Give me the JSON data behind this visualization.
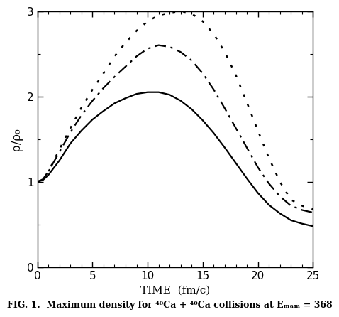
{
  "title": "",
  "xlabel": "TIME  (fm/c)",
  "ylabel": "ρ/ρ₀",
  "xlim": [
    0,
    25
  ],
  "ylim": [
    0,
    3
  ],
  "xticks": [
    0,
    5,
    10,
    15,
    20,
    25
  ],
  "yticks": [
    0,
    1,
    2,
    3
  ],
  "background_color": "#ffffff",
  "curves": {
    "solid": {
      "t": [
        0,
        0.5,
        1,
        2,
        3,
        4,
        5,
        6,
        7,
        8,
        9,
        10,
        11,
        12,
        13,
        14,
        15,
        16,
        17,
        18,
        19,
        20,
        21,
        22,
        23,
        24,
        25
      ],
      "rho": [
        1.0,
        1.02,
        1.08,
        1.25,
        1.45,
        1.6,
        1.73,
        1.83,
        1.92,
        1.98,
        2.03,
        2.05,
        2.05,
        2.02,
        1.95,
        1.85,
        1.72,
        1.57,
        1.4,
        1.22,
        1.04,
        0.87,
        0.73,
        0.63,
        0.55,
        0.51,
        0.48
      ]
    },
    "dashdot": {
      "t": [
        0,
        0.5,
        1,
        2,
        3,
        4,
        5,
        6,
        7,
        8,
        9,
        10,
        11,
        12,
        13,
        14,
        15,
        16,
        17,
        18,
        19,
        20,
        21,
        22,
        23,
        24,
        25
      ],
      "rho": [
        1.0,
        1.03,
        1.12,
        1.35,
        1.58,
        1.78,
        1.95,
        2.1,
        2.23,
        2.35,
        2.47,
        2.56,
        2.6,
        2.58,
        2.52,
        2.42,
        2.27,
        2.08,
        1.86,
        1.63,
        1.4,
        1.17,
        0.98,
        0.83,
        0.72,
        0.67,
        0.64
      ]
    },
    "dotted": {
      "t": [
        0,
        0.5,
        1,
        2,
        3,
        4,
        5,
        6,
        7,
        8,
        9,
        10,
        11,
        12,
        13,
        14,
        15,
        16,
        17,
        18,
        19,
        20,
        21,
        22,
        23,
        24,
        25
      ],
      "rho": [
        1.0,
        1.03,
        1.12,
        1.38,
        1.63,
        1.87,
        2.08,
        2.27,
        2.47,
        2.63,
        2.77,
        2.88,
        2.95,
        2.98,
        3.0,
        2.97,
        2.88,
        2.73,
        2.52,
        2.25,
        1.93,
        1.6,
        1.28,
        1.0,
        0.79,
        0.72,
        0.68
      ]
    }
  },
  "caption": "FIG. 1.  Maximum density for ⁴⁰Ca + ⁴⁰Ca collisions at Eₘₐₘ = 368",
  "caption_fontsize": 9
}
